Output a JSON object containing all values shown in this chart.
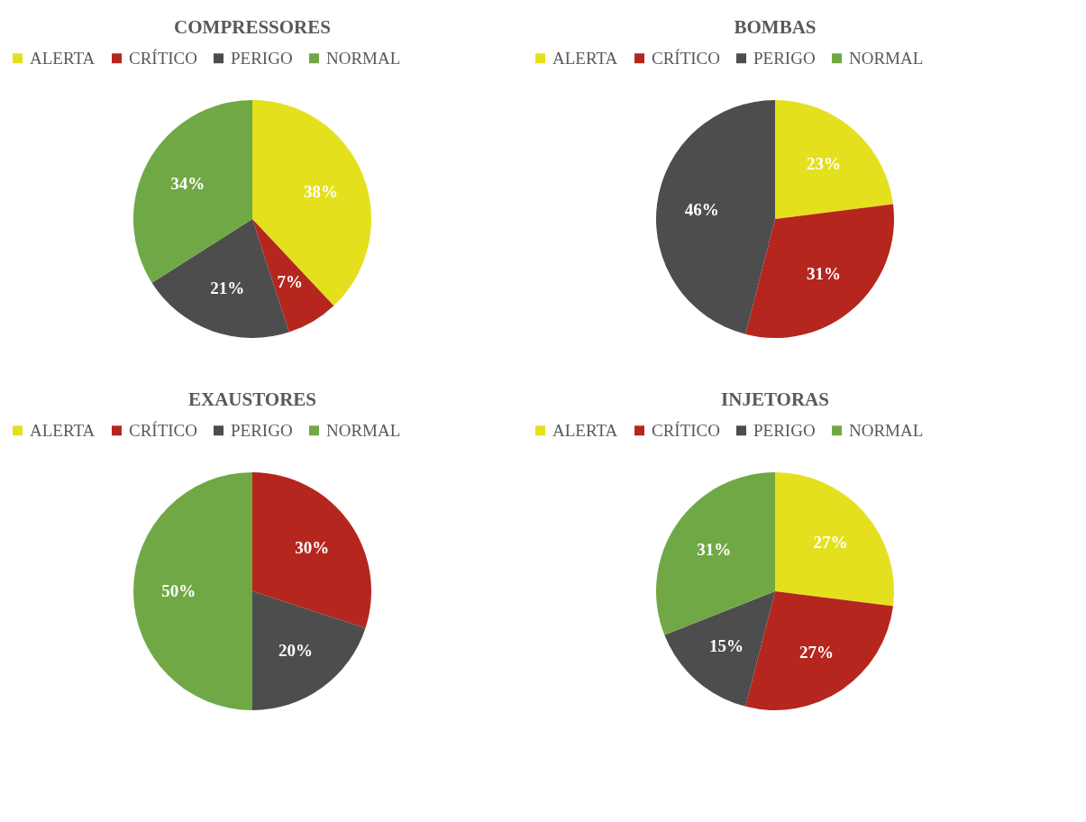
{
  "chart_data": [
    {
      "type": "pie",
      "title": "COMPRESSORES",
      "categories": [
        "ALERTA",
        "CRÍTICO",
        "PERIGO",
        "NORMAL"
      ],
      "values": [
        38,
        7,
        21,
        34
      ],
      "colors": [
        "#e5e01e",
        "#b5261e",
        "#4d4d4d",
        "#70a845"
      ],
      "value_labels": [
        "38%",
        "7%",
        "21%",
        "34%"
      ],
      "legend": "top"
    },
    {
      "type": "pie",
      "title": "BOMBAS",
      "categories": [
        "ALERTA",
        "CRÍTICO",
        "PERIGO",
        "NORMAL"
      ],
      "values": [
        23,
        31,
        46,
        0
      ],
      "colors": [
        "#e5e01e",
        "#b5261e",
        "#4d4d4d",
        "#70a845"
      ],
      "value_labels": [
        "23%",
        "31%",
        "46%",
        null
      ],
      "legend": "top"
    },
    {
      "type": "pie",
      "title": "EXAUSTORES",
      "categories": [
        "ALERTA",
        "CRÍTICO",
        "PERIGO",
        "NORMAL"
      ],
      "values": [
        0,
        30,
        20,
        50
      ],
      "colors": [
        "#e5e01e",
        "#b5261e",
        "#4d4d4d",
        "#70a845"
      ],
      "value_labels": [
        null,
        "30%",
        "20%",
        "50%"
      ],
      "legend": "top"
    },
    {
      "type": "pie",
      "title": "INJETORAS",
      "categories": [
        "ALERTA",
        "CRÍTICO",
        "PERIGO",
        "NORMAL"
      ],
      "values": [
        27,
        27,
        15,
        31
      ],
      "colors": [
        "#e5e01e",
        "#b5261e",
        "#4d4d4d",
        "#70a845"
      ],
      "value_labels": [
        "27%",
        "27%",
        "15%",
        "31%"
      ],
      "legend": "top"
    }
  ]
}
